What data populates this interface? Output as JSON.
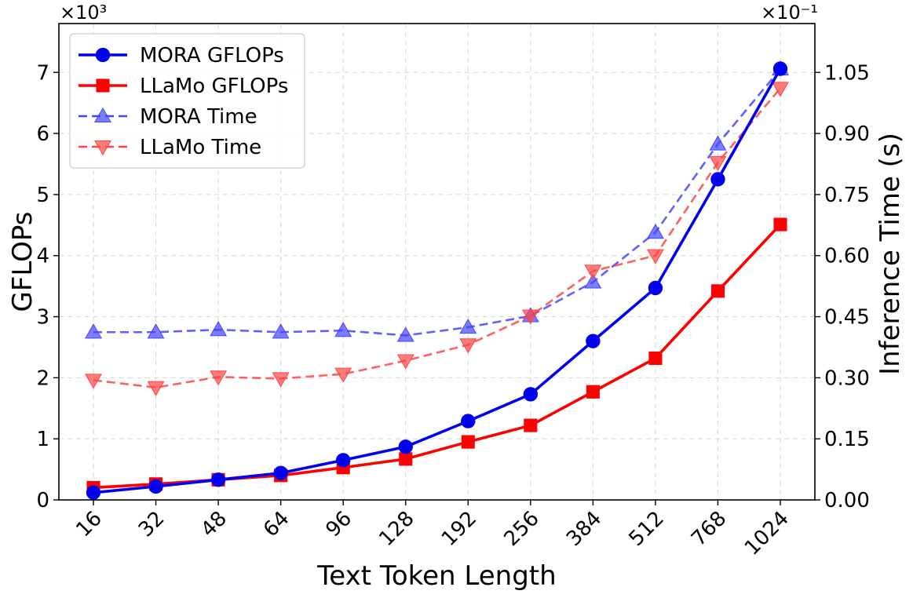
{
  "chart_data": {
    "type": "line",
    "categories": [
      "16",
      "32",
      "48",
      "64",
      "96",
      "128",
      "192",
      "256",
      "384",
      "512",
      "768",
      "1024"
    ],
    "xlabel": "Text Token Length",
    "ylabel": "GFLOPs",
    "y2label": "Inference Time (s)",
    "y_multiplier": "×10³",
    "y2_multiplier": "×10⁻¹",
    "ylim": [
      0,
      7.8
    ],
    "y2lim": [
      0,
      1.17
    ],
    "yticks": [
      "0",
      "1",
      "2",
      "3",
      "4",
      "5",
      "6",
      "7"
    ],
    "y2ticks": [
      "0.00",
      "0.15",
      "0.30",
      "0.45",
      "0.60",
      "0.75",
      "0.90",
      "1.05"
    ],
    "grid": true,
    "legend_position": "top-left",
    "series": [
      {
        "name": "MORA GFLOPs",
        "axis": "left",
        "style": "solid",
        "marker": "circle",
        "color": "#0000ee",
        "values": [
          0.12,
          0.22,
          0.33,
          0.44,
          0.65,
          0.87,
          1.29,
          1.73,
          2.6,
          3.47,
          5.25,
          7.06
        ]
      },
      {
        "name": "LLaMo GFLOPs",
        "axis": "left",
        "style": "solid",
        "marker": "square",
        "color": "#ff0000",
        "values": [
          0.2,
          0.26,
          0.33,
          0.4,
          0.53,
          0.67,
          0.95,
          1.22,
          1.77,
          2.32,
          3.42,
          4.51
        ]
      },
      {
        "name": "MORA Time",
        "axis": "right",
        "style": "dashed",
        "marker": "triangle-up",
        "color": "#4444ff",
        "values": [
          0.412,
          0.412,
          0.418,
          0.412,
          0.416,
          0.404,
          0.424,
          0.452,
          0.535,
          0.657,
          0.874,
          1.058
        ]
      },
      {
        "name": "LLaMo Time",
        "axis": "right",
        "style": "dashed",
        "marker": "triangle-down",
        "color": "#ff4444",
        "values": [
          0.294,
          0.276,
          0.302,
          0.298,
          0.309,
          0.342,
          0.381,
          0.452,
          0.562,
          0.6,
          0.829,
          1.011
        ]
      }
    ]
  }
}
